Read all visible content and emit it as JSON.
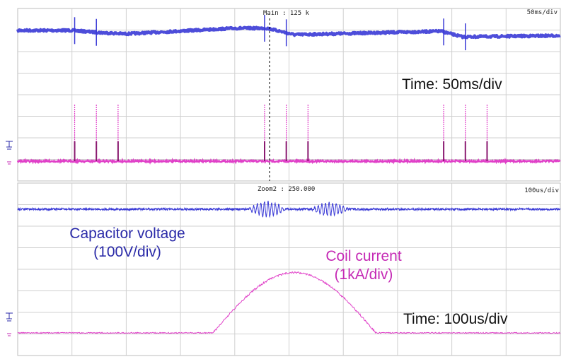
{
  "chart_data": [
    {
      "type": "line",
      "panel": "main",
      "timebase_label": "50ms/div",
      "marker_label": "Main : 125 k",
      "annotation": "Time: 50ms/div",
      "x_divisions": 10,
      "series": [
        {
          "color": "#3a3ad6",
          "level_steps": [
            {
              "div": 0.0,
              "level": 0.0
            },
            {
              "div": 1.0,
              "level": 0.0
            },
            {
              "div": 1.5,
              "level": -0.05
            },
            {
              "div": 2.0,
              "level": -0.08
            },
            {
              "div": 4.0,
              "level": 0.05
            },
            {
              "div": 4.6,
              "level": 0.05
            },
            {
              "div": 5.1,
              "level": -0.1
            },
            {
              "div": 7.8,
              "level": -0.02
            },
            {
              "div": 8.2,
              "level": -0.15
            },
            {
              "div": 10.0,
              "level": -0.12
            }
          ],
          "spike_divs": [
            1.05,
            1.45,
            4.55,
            4.95,
            7.85,
            8.25
          ]
        },
        {
          "color": "#e040c8",
          "pulse_divs": [
            1.05,
            1.45,
            1.85,
            4.55,
            4.95,
            5.35,
            7.85,
            8.25,
            8.65
          ]
        }
      ]
    },
    {
      "type": "line",
      "panel": "zoom",
      "timebase_label": "100us/div",
      "marker_label": "Zoom2 : 250.000",
      "annotation": "Time: 100us/div",
      "x_divisions": 10,
      "series": [
        {
          "name": "Capacitor voltage",
          "unit": "(100V/div)",
          "color": "#3a3ad6",
          "oscillation_bursts": [
            {
              "center_div": 4.6,
              "width_div": 0.7,
              "amplitude_div": 0.35
            },
            {
              "center_div": 5.75,
              "width_div": 0.7,
              "amplitude_div": 0.3
            }
          ]
        },
        {
          "name": "Coil current",
          "unit": "(1kA/div)",
          "color": "#e040c8",
          "pulse_start_div": 3.6,
          "pulse_end_div": 6.6,
          "peak_div": 5.2,
          "peak_height_div": 2.8
        }
      ]
    }
  ],
  "annotations": {
    "capacitor_label": "Capacitor voltage",
    "capacitor_unit": "(100V/div)",
    "coil_label": "Coil current",
    "coil_unit": "(1kA/div)"
  }
}
